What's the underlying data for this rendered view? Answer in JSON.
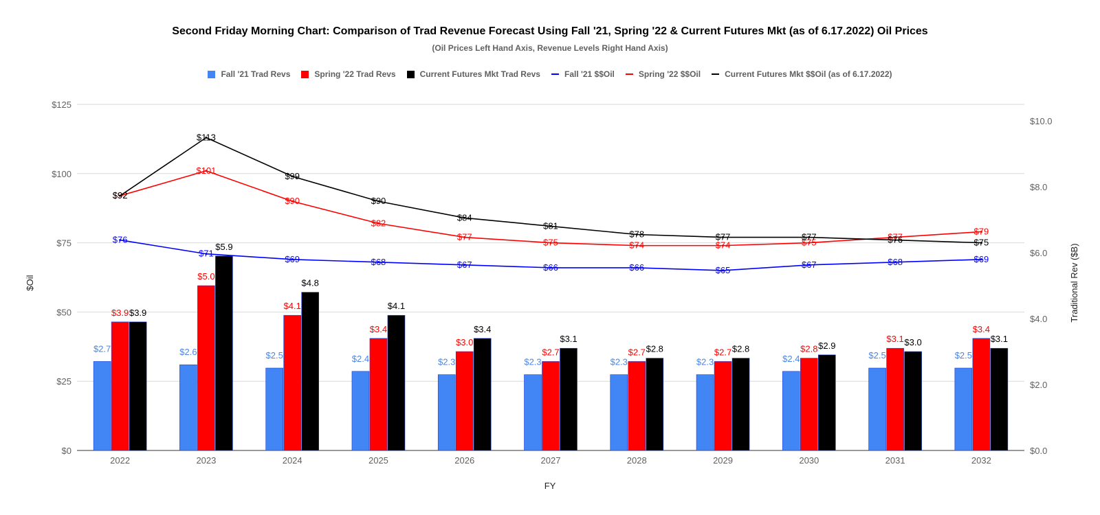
{
  "chart_data": {
    "type": "bar",
    "title": "Second Friday Morning Chart: Comparison of Trad Revenue Forecast Using Fall '21, Spring '22 & Current Futures Mkt (as of 6.17.2022) Oil Prices",
    "subtitle": "(Oil Prices Left Hand Axis, Revenue Levels Right Hand Axis)",
    "xlabel": "FY",
    "ylabel_left": "$Oil",
    "ylabel_right": "Traditional Rev ($B)",
    "ylim_left": [
      0,
      125
    ],
    "ylim_right": [
      0,
      10
    ],
    "left_ticks": [
      "$0",
      "$25",
      "$50",
      "$75",
      "$100",
      "$125"
    ],
    "right_ticks": [
      "$0.0",
      "$2.0",
      "$4.0",
      "$6.0",
      "$8.0",
      "$10.0"
    ],
    "grid": true,
    "legend_position": "top",
    "categories": [
      "2022",
      "2023",
      "2024",
      "2025",
      "2026",
      "2027",
      "2028",
      "2029",
      "2030",
      "2031",
      "2032"
    ],
    "bar_series": [
      {
        "name": "Fall '21 Trad Revs",
        "color": "#4285f4",
        "label_color": "#4a86e8",
        "values": [
          2.7,
          2.6,
          2.5,
          2.4,
          2.3,
          2.3,
          2.3,
          2.3,
          2.4,
          2.5,
          2.5
        ],
        "labels": [
          "$2.7",
          "$2.6",
          "$2.5",
          "$2.4",
          "$2.3",
          "$2.3",
          "$2.3",
          "$2.3",
          "$2.4",
          "$2.5",
          "$2.5"
        ]
      },
      {
        "name": "Spring '22 Trad Revs",
        "color": "#ff0000",
        "label_color": "#ff0000",
        "values": [
          3.9,
          5.0,
          4.1,
          3.4,
          3.0,
          2.7,
          2.7,
          2.7,
          2.8,
          3.1,
          3.4
        ],
        "labels": [
          "$3.9",
          "$5.0",
          "$4.1",
          "$3.4",
          "$3.0",
          "$2.7",
          "$2.7",
          "$2.7",
          "$2.8",
          "$3.1",
          "$3.4"
        ]
      },
      {
        "name": "Current Futures Mkt Trad Revs",
        "color": "#000000",
        "label_color": "#000000",
        "values": [
          3.9,
          5.9,
          4.8,
          4.1,
          3.4,
          3.1,
          2.8,
          2.8,
          2.9,
          3.0,
          3.1
        ],
        "labels": [
          "$3.9",
          "$5.9",
          "$4.8",
          "$4.1",
          "$3.4",
          "$3.1",
          "$2.8",
          "$2.8",
          "$2.9",
          "$3.0",
          "$3.1"
        ]
      }
    ],
    "line_series": [
      {
        "name": "Fall '21 $$Oil",
        "color": "#0000ff",
        "values": [
          76,
          71,
          69,
          68,
          67,
          66,
          66,
          65,
          67,
          68,
          69
        ],
        "labels": [
          "$76",
          "$71",
          "$69",
          "$68",
          "$67",
          "$66",
          "$66",
          "$65",
          "$67",
          "$68",
          "$69"
        ]
      },
      {
        "name": "Spring '22 $$Oil",
        "color": "#ff0000",
        "values": [
          92,
          101,
          90,
          82,
          77,
          75,
          74,
          74,
          75,
          77,
          79
        ],
        "labels": [
          "$92",
          "$101",
          "$90",
          "$82",
          "$77",
          "$75",
          "$74",
          "$74",
          "$75",
          "$77",
          "$79"
        ]
      },
      {
        "name": "Current Futures Mkt $$Oil (as of 6.17.2022)",
        "color": "#000000",
        "values": [
          92,
          113,
          99,
          90,
          84,
          81,
          78,
          77,
          77,
          76,
          75
        ],
        "labels": [
          "$92",
          "$113",
          "$99",
          "$90",
          "$84",
          "$81",
          "$78",
          "$77",
          "$77",
          "$76",
          "$75"
        ]
      }
    ]
  }
}
